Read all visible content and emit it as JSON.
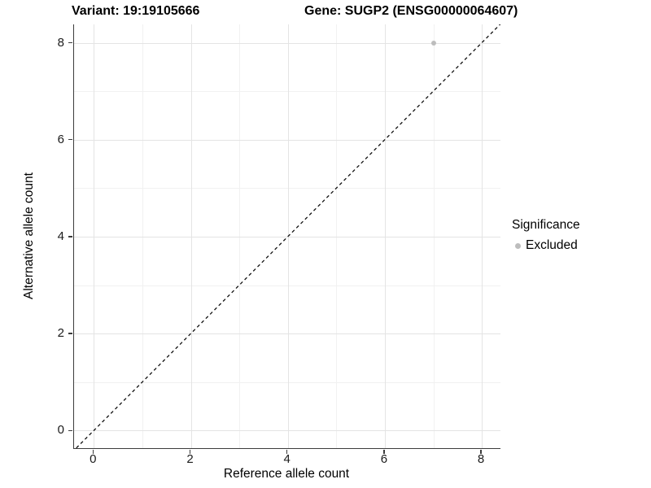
{
  "titles": {
    "left": "Variant: 19:19105666",
    "right": "Gene: SUGP2 (ENSG00000064607)"
  },
  "chart_data": {
    "type": "scatter",
    "title": "Variant: 19:19105666   Gene: SUGP2 (ENSG00000064607)",
    "xlabel": "Reference allele count",
    "ylabel": "Alternative allele count",
    "xlim": [
      -0.4,
      8.4
    ],
    "ylim": [
      -0.4,
      8.4
    ],
    "x_ticks": [
      0,
      2,
      4,
      6,
      8
    ],
    "y_ticks": [
      0,
      2,
      4,
      6,
      8
    ],
    "x_minor_ticks": [
      1,
      3,
      5,
      7
    ],
    "y_minor_ticks": [
      1,
      3,
      5,
      7
    ],
    "grid": "on",
    "series": [
      {
        "name": "Excluded",
        "color": "#bdbdbd",
        "points": [
          {
            "x": 7,
            "y": 8
          }
        ]
      }
    ],
    "reference_line": {
      "equation": "y = x",
      "style": "dashed",
      "color": "#111111"
    },
    "legend": {
      "title": "Significance",
      "position": "right",
      "items": [
        {
          "label": "Excluded",
          "color": "#bdbdbd"
        }
      ]
    }
  },
  "colors": {
    "grid_major": "#e4e4e4",
    "grid_minor": "#f1f1f1",
    "axis_line": "#3c3c3c",
    "point": "#bdbdbd",
    "background": "#ffffff"
  }
}
